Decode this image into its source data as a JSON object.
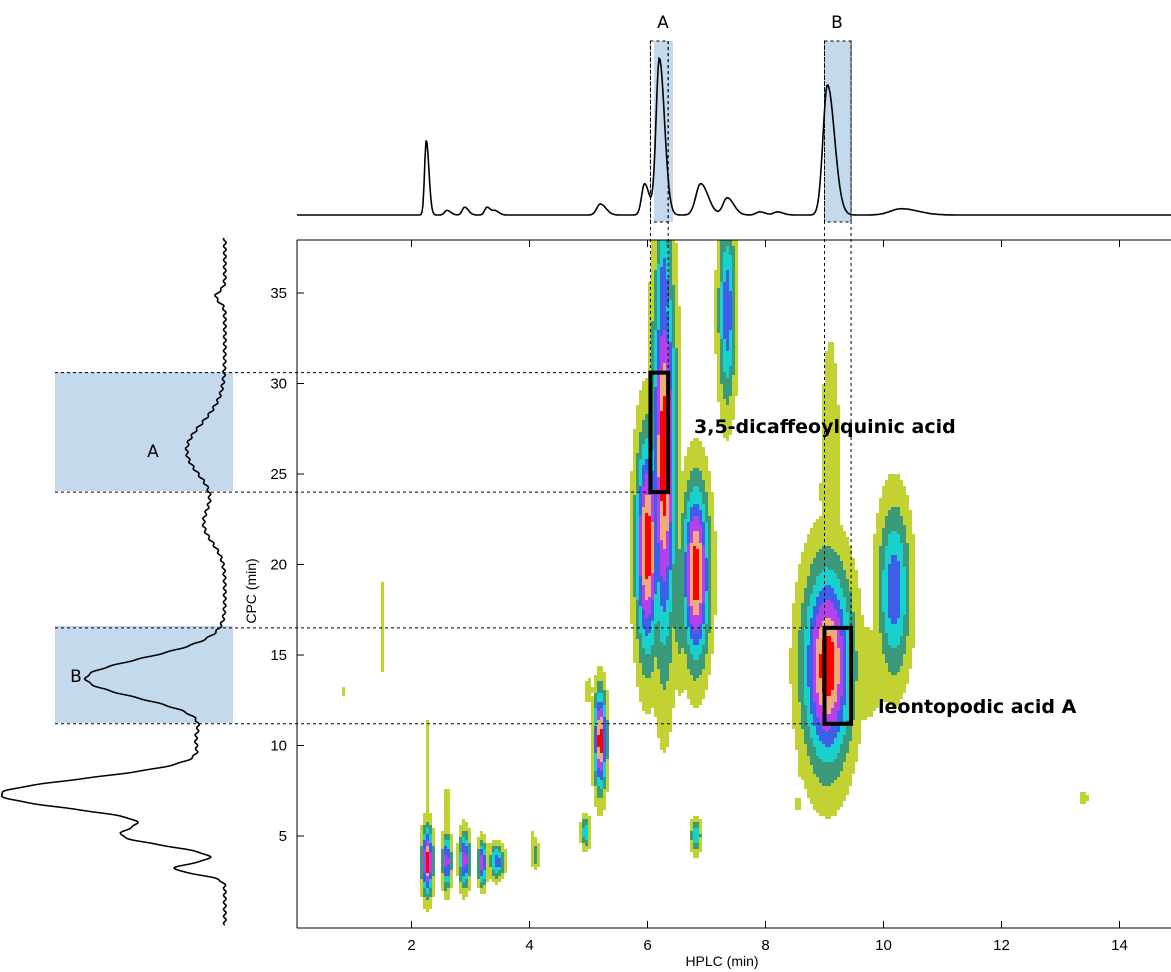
{
  "chart_data": {
    "type": "heatmap",
    "xlabel": "HPLC (min)",
    "ylabel": "CPC (min)",
    "xlim": [
      0,
      15
    ],
    "ylim": [
      0,
      38
    ],
    "x_ticks": [
      2,
      4,
      6,
      8,
      10,
      12,
      14
    ],
    "y_ticks": [
      5,
      10,
      15,
      20,
      25,
      30,
      35
    ],
    "colors": {
      "lime": "#c3d233",
      "green": "#3a9a7a",
      "cyan": "#18d0cc",
      "blue": "#3c60e8",
      "magenta": "#b640ec",
      "orange": "#f0a978",
      "red": "#ff0000",
      "band": "#c5d9ec",
      "line": "#000000"
    },
    "regions": [
      {
        "label": "A",
        "hplc_range": [
          6.05,
          6.35
        ],
        "cpc_range": [
          24,
          30.6
        ]
      },
      {
        "label": "B",
        "hplc_range": [
          9.0,
          9.45
        ],
        "cpc_range": [
          11.2,
          16.5
        ]
      }
    ],
    "annotations": [
      {
        "text": "3,5-dicaffeoylquinic acid",
        "hplc": 6.7,
        "cpc": 27.7
      },
      {
        "text": "leontopodic acid A",
        "hplc": 9.85,
        "cpc": 12.0
      }
    ],
    "contour_peaks": [
      {
        "x": 6.28,
        "y": 26,
        "sx": 0.13,
        "sy": 7.0,
        "level": 7
      },
      {
        "x": 6.28,
        "y": 35,
        "sx": 0.1,
        "sy": 3.0,
        "level": 4
      },
      {
        "x": 6.0,
        "y": 21,
        "sx": 0.13,
        "sy": 4.0,
        "level": 7
      },
      {
        "x": 6.82,
        "y": 19.5,
        "sx": 0.15,
        "sy": 3.2,
        "level": 7
      },
      {
        "x": 6.55,
        "y": 18,
        "sx": 0.1,
        "sy": 3.0,
        "level": 2
      },
      {
        "x": 7.35,
        "y": 34,
        "sx": 0.1,
        "sy": 3.4,
        "level": 4
      },
      {
        "x": 9.05,
        "y": 14.4,
        "sx": 0.27,
        "sy": 3.6,
        "level": 7
      },
      {
        "x": 9.1,
        "y": 24,
        "sx": 0.12,
        "sy": 6.0,
        "level": 1
      },
      {
        "x": 9.6,
        "y": 14.0,
        "sx": 0.3,
        "sy": 1.9,
        "level": 1
      },
      {
        "x": 10.18,
        "y": 18.6,
        "sx": 0.18,
        "sy": 3.1,
        "level": 4
      },
      {
        "x": 10.1,
        "y": 14.6,
        "sx": 0.25,
        "sy": 1.6,
        "level": 1
      },
      {
        "x": 5.2,
        "y": 10.3,
        "sx": 0.07,
        "sy": 1.8,
        "level": 7
      },
      {
        "x": 5.0,
        "y": 13.0,
        "sx": 0.05,
        "sy": 0.5,
        "level": 1
      },
      {
        "x": 4.95,
        "y": 5.2,
        "sx": 0.05,
        "sy": 0.6,
        "level": 3
      },
      {
        "x": 6.82,
        "y": 5.0,
        "sx": 0.06,
        "sy": 0.6,
        "level": 3
      },
      {
        "x": 6.55,
        "y": 13.0,
        "sx": 0.03,
        "sy": 0.2,
        "level": 1
      },
      {
        "x": 8.55,
        "y": 10.2,
        "sx": 0.05,
        "sy": 0.4,
        "level": 1
      },
      {
        "x": 8.6,
        "y": 9.2,
        "sx": 0.05,
        "sy": 0.7,
        "level": 1
      },
      {
        "x": 8.55,
        "y": 6.8,
        "sx": 0.04,
        "sy": 0.3,
        "level": 1
      },
      {
        "x": 13.4,
        "y": 7.1,
        "sx": 0.05,
        "sy": 0.25,
        "level": 1
      },
      {
        "x": 1.5,
        "y": 16.5,
        "sx": 0.03,
        "sy": 1.8,
        "level": 1
      },
      {
        "x": 0.85,
        "y": 13.0,
        "sx": 0.02,
        "sy": 0.2,
        "level": 1
      },
      {
        "x": 2.27,
        "y": 3.6,
        "sx": 0.06,
        "sy": 1.2,
        "level": 7
      },
      {
        "x": 2.27,
        "y": 7.5,
        "sx": 0.03,
        "sy": 2.8,
        "level": 1
      },
      {
        "x": 2.6,
        "y": 3.6,
        "sx": 0.05,
        "sy": 1.0,
        "level": 5
      },
      {
        "x": 2.6,
        "y": 6.5,
        "sx": 0.03,
        "sy": 1.0,
        "level": 1
      },
      {
        "x": 2.9,
        "y": 3.7,
        "sx": 0.06,
        "sy": 1.0,
        "level": 5
      },
      {
        "x": 3.2,
        "y": 3.5,
        "sx": 0.05,
        "sy": 0.8,
        "level": 5
      },
      {
        "x": 3.45,
        "y": 3.6,
        "sx": 0.08,
        "sy": 0.6,
        "level": 4
      },
      {
        "x": 4.1,
        "y": 4.0,
        "sx": 0.05,
        "sy": 0.5,
        "level": 2
      },
      {
        "x": 4.05,
        "y": 4.8,
        "sx": 0.03,
        "sy": 0.3,
        "level": 1
      }
    ],
    "hplc_trace_peaks": [
      {
        "x": 2.25,
        "height": 0.48,
        "width": 0.028
      },
      {
        "x": 2.6,
        "height": 0.03,
        "width": 0.04
      },
      {
        "x": 2.9,
        "height": 0.05,
        "width": 0.04
      },
      {
        "x": 3.28,
        "height": 0.05,
        "width": 0.04
      },
      {
        "x": 3.42,
        "height": 0.025,
        "width": 0.04
      },
      {
        "x": 5.2,
        "height": 0.07,
        "width": 0.06
      },
      {
        "x": 5.95,
        "height": 0.2,
        "width": 0.05
      },
      {
        "x": 6.2,
        "height": 1.0,
        "width": 0.055
      },
      {
        "x": 6.9,
        "height": 0.2,
        "width": 0.08
      },
      {
        "x": 7.35,
        "height": 0.11,
        "width": 0.07
      },
      {
        "x": 7.9,
        "height": 0.02,
        "width": 0.06
      },
      {
        "x": 8.2,
        "height": 0.02,
        "width": 0.06
      },
      {
        "x": 9.05,
        "height": 0.83,
        "width": 0.075
      },
      {
        "x": 10.3,
        "height": 0.04,
        "width": 0.18
      }
    ],
    "cpc_trace_peaks": [
      {
        "y": 3.2,
        "height": 0.22,
        "width": 0.3
      },
      {
        "y": 5.0,
        "height": 0.42,
        "width": 0.55
      },
      {
        "y": 7.3,
        "height": 1.0,
        "width": 0.9
      },
      {
        "y": 10.3,
        "height": 0.12,
        "width": 0.9
      },
      {
        "y": 13.7,
        "height": 0.62,
        "width": 1.1
      },
      {
        "y": 26.3,
        "height": 0.17,
        "width": 1.5
      },
      {
        "y": 22.2,
        "height": 0.09,
        "width": 1.0
      },
      {
        "y": 34.8,
        "height": 0.04,
        "width": 0.3
      }
    ]
  }
}
